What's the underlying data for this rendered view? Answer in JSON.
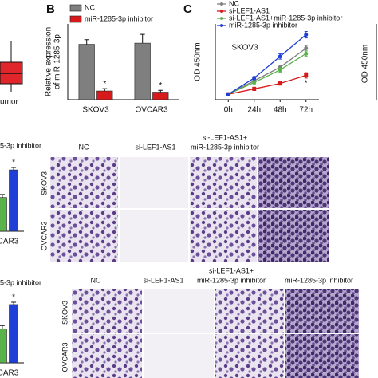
{
  "panels": {
    "a": {
      "label": "umor"
    },
    "b": {
      "letter": "B"
    },
    "c": {
      "letter": "C",
      "right_ylabel": "OD 450nm"
    },
    "migration": {
      "legend_fragment": "5-3p inhibitor",
      "columns": [
        "NC",
        "si-LEF1-AS1",
        "si-LEF1-AS1+",
        "miR-1285-3p inhibitor"
      ],
      "rows": [
        "SKOV3",
        "OVCAR3"
      ]
    },
    "invasion": {
      "legend_fragment": "5-3p inhibitor",
      "columns": [
        "NC",
        "si-LEF1-AS1",
        "si-LEF1-AS1+",
        "miR-1285-3p inhibitor",
        "miR-1285-3p inhibitor"
      ],
      "rows": [
        "SKOV3",
        "OVCAR3"
      ]
    }
  },
  "chart_data": [
    {
      "type": "bar",
      "ylabel": [
        "Relative expression",
        "of miR-1285-3p"
      ],
      "categories": [
        "SKOV3",
        "OVCAR3"
      ],
      "ylim": [
        0,
        1.3
      ],
      "series": [
        {
          "name": "NC",
          "color": "#7f7f7f",
          "values": [
            0.95,
            0.97
          ],
          "errors": [
            0.08,
            0.15
          ]
        },
        {
          "name": "miR-1285-3p inhibitor",
          "color": "#d7191c",
          "values": [
            0.15,
            0.13
          ],
          "errors": [
            0.04,
            0.03
          ]
        }
      ],
      "annotations": [
        "*",
        "*"
      ]
    },
    {
      "type": "line",
      "ylabel": "OD 450nm",
      "annotation": "SKOV3",
      "categories": [
        "0h",
        "24h",
        "48h",
        "72h"
      ],
      "ylim": [
        0,
        1.4
      ],
      "series": [
        {
          "name": "NC",
          "color": "#7f7f7f",
          "values": [
            0.1,
            0.35,
            0.6,
            0.95
          ],
          "errors": [
            0.02,
            0.03,
            0.04,
            0.05
          ]
        },
        {
          "name": "si-LEF1-AS1",
          "color": "#d7191c",
          "values": [
            0.1,
            0.2,
            0.3,
            0.45
          ],
          "errors": [
            0.02,
            0.03,
            0.03,
            0.05
          ]
        },
        {
          "name": "si-LEF1-AS1+miR-1285-3p inhibitor",
          "color": "#5ab24a",
          "values": [
            0.1,
            0.32,
            0.55,
            0.85
          ],
          "errors": [
            0.02,
            0.03,
            0.04,
            0.05
          ]
        },
        {
          "name": "miR-1285-3p inhibitor",
          "color": "#1f3fd6",
          "values": [
            0.1,
            0.4,
            0.8,
            1.2
          ],
          "errors": [
            0.02,
            0.03,
            0.05,
            0.06
          ]
        }
      ],
      "annotations": [
        "*"
      ]
    },
    {
      "type": "bar",
      "categories": [
        "CAR3"
      ],
      "ylim": [
        0,
        1.3
      ],
      "series": [
        {
          "color": "#5ab24a",
          "values": [
            0.55
          ],
          "errors": [
            0.05
          ]
        },
        {
          "color": "#1f3fd6",
          "values": [
            1.0
          ],
          "errors": [
            0.04
          ]
        }
      ],
      "annotations": [
        "*"
      ]
    },
    {
      "type": "bar",
      "categories": [
        "CAR3"
      ],
      "ylim": [
        0,
        1.3
      ],
      "series": [
        {
          "color": "#5ab24a",
          "values": [
            0.58
          ],
          "errors": [
            0.06
          ]
        },
        {
          "color": "#1f3fd6",
          "values": [
            1.0
          ],
          "errors": [
            0.04
          ]
        }
      ],
      "annotations": [
        "*"
      ]
    }
  ]
}
